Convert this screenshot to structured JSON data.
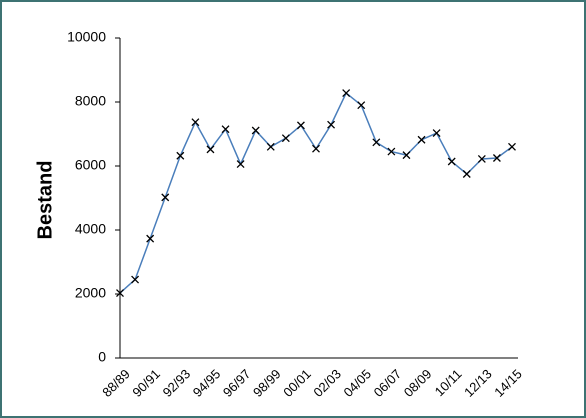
{
  "chart_data": {
    "type": "line",
    "y_label": "Bestand",
    "categories": [
      "88/89",
      null,
      "90/91",
      null,
      "92/93",
      null,
      "94/95",
      null,
      "96/97",
      null,
      "98/99",
      null,
      "00/01",
      null,
      "02/03",
      null,
      "04/05",
      null,
      "06/07",
      null,
      "08/09",
      null,
      "10/11",
      null,
      "12/13",
      null,
      "14/15"
    ],
    "values": [
      2030,
      2450,
      3730,
      5020,
      6320,
      7370,
      6520,
      7150,
      6060,
      7110,
      6600,
      6870,
      7270,
      6540,
      7290,
      8280,
      7900,
      6740,
      6450,
      6340,
      6820,
      7030,
      6140,
      5750,
      6220,
      6250,
      6600
    ],
    "color": "#4a7ebb",
    "marker": "x",
    "ylim": [
      0,
      10000
    ],
    "yticks": [
      0,
      2000,
      4000,
      6000,
      8000,
      10000
    ],
    "grid": false
  }
}
